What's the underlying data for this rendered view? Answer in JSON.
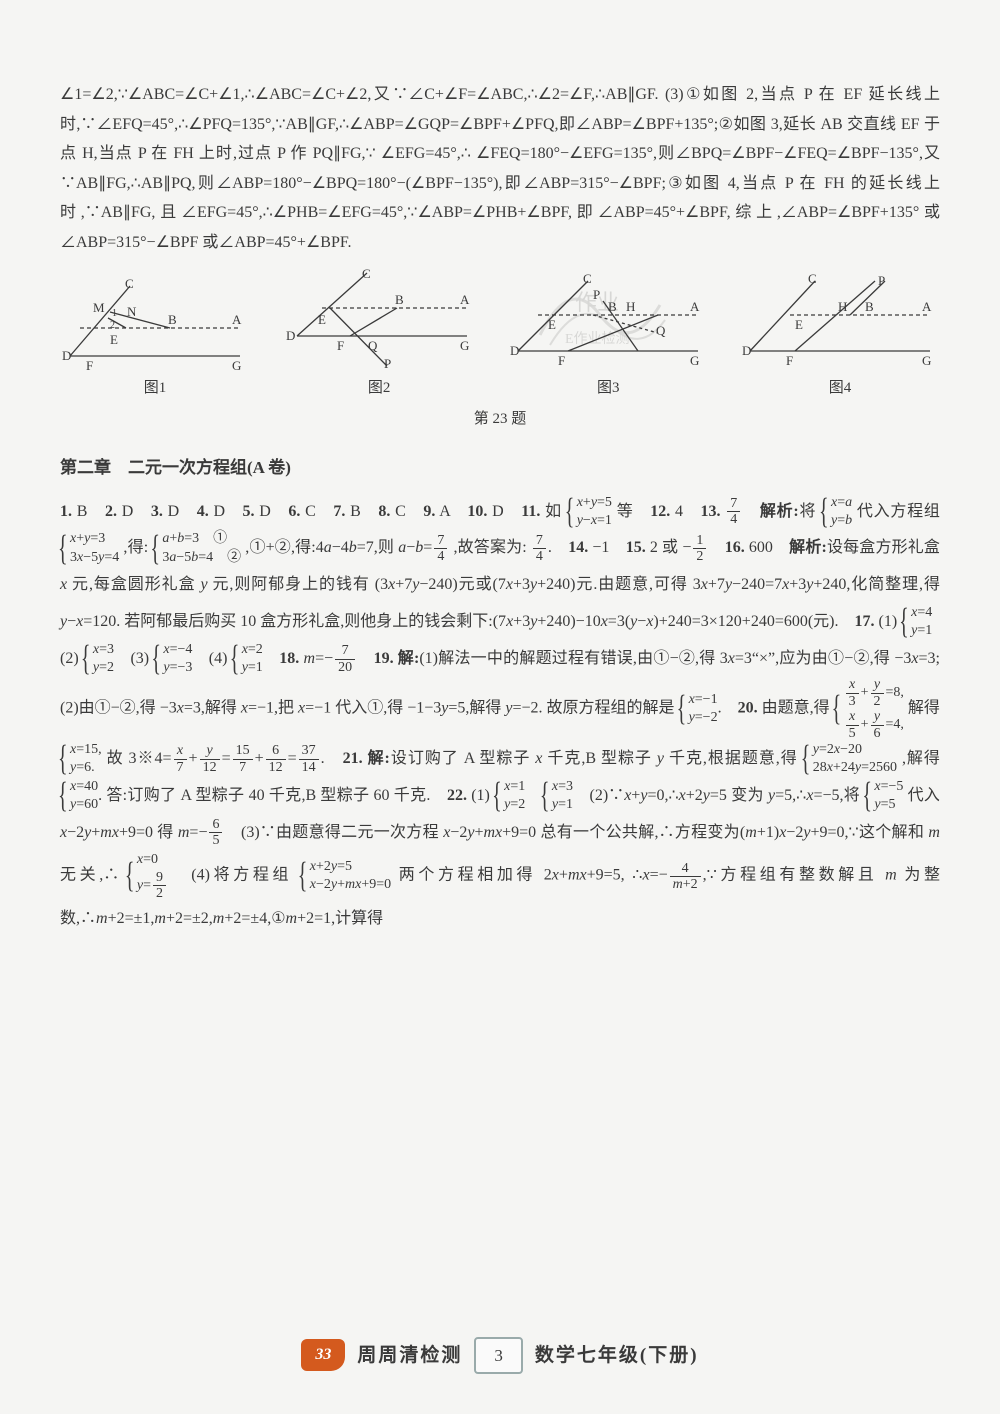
{
  "top_solution": "∠1=∠2,∵∠ABC=∠C+∠1,∴∠ABC=∠C+∠2,又∵∠C+∠F=∠ABC,∴∠2=∠F,∴AB∥GF. (3)①如图 2,当点 P 在 EF 延长线上时,∵∠EFQ=45°,∴∠PFQ=135°,∵AB∥GF,∴∠ABP=∠GQP=∠BPF+∠PFQ,即∠ABP=∠BPF+135°;②如图 3,延长 AB 交直线 EF 于点 H,当点 P 在 FH 上时,过点 P 作 PQ∥FG,∵ ∠EFG=45°,∴ ∠FEQ=180°−∠EFG=135°,则∠BPQ=∠BPF−∠FEQ=∠BPF−135°,又∵AB∥FG,∴AB∥PQ,则∠ABP=180°−∠BPQ=180°−(∠BPF−135°),即∠ABP=315°−∠BPF;③如图 4,当点 P 在 FH 的延长线上时,∵AB∥FG,且∠EFG=45°,∴∠PHB=∠EFG=45°,∵∠ABP=∠PHB+∠BPF,即∠ABP=45°+∠BPF,综上,∠ABP=∠BPF+135°或∠ABP=315°−∠BPF 或∠ABP=45°+∠BPF.",
  "figures": {
    "labels": [
      "图1",
      "图2",
      "图3",
      "图4"
    ],
    "caption": "第 23 题",
    "letters": {
      "f1": [
        "C",
        "M",
        "N",
        "A",
        "B",
        "D",
        "E",
        "F",
        "G"
      ],
      "f2": [
        "C",
        "A",
        "B",
        "D",
        "E",
        "F",
        "G",
        "P",
        "Q"
      ],
      "f3": [
        "C",
        "A",
        "B",
        "D",
        "E",
        "F",
        "G",
        "P",
        "H",
        "Q"
      ],
      "f4": [
        "C",
        "P",
        "A",
        "B",
        "D",
        "E",
        "F",
        "G",
        "H"
      ]
    }
  },
  "chapter_heading": "第二章　二元一次方程组(A 卷)",
  "answers_html": "<b>1.</b> B　<b>2.</b> D　<b>3.</b> D　<b>4.</b> D　<b>5.</b> D　<b>6.</b> C　<b>7.</b> B　<b>8.</b> C　<b>9.</b> A　<b>10.</b> D　<b>11.</b> 如 <span class='sys'><span class='row'><span class='it'>x</span>+<span class='it'>y</span>=5</span><span class='row'><span class='it'>y</span>−<span class='it'>x</span>=1</span></span> 等　<b>12.</b> 4　<b>13.</b> <span class='frac'><span class='num'>7</span><span class='den'>4</span></span>　<b>解析:</b>将 <span class='sys'><span class='row'><span class='it'>x</span>=<span class='it'>a</span></span><span class='row'><span class='it'>y</span>=<span class='it'>b</span></span></span> 代入方程组 <span class='sys'><span class='row'><span class='it'>x</span>+<span class='it'>y</span>=3</span><span class='row'>3<span class='it'>x</span>−5<span class='it'>y</span>=4</span></span> ,得: <span class='sys'><span class='row'><span class='it'>a</span>+<span class='it'>b</span>=3　①</span><span class='row'>3<span class='it'>a</span>−5<span class='it'>b</span>=4　②</span></span> ,①+②,得:4<span class='it'>a</span>−4<span class='it'>b</span>=7,则 <span class='it'>a</span>−<span class='it'>b</span>=<span class='frac'><span class='num'>7</span><span class='den'>4</span></span> ,故答案为: <span class='frac'><span class='num'>7</span><span class='den'>4</span></span>.　<b>14.</b> −1　<b>15.</b> 2 或 −<span class='frac'><span class='num'>1</span><span class='den'>2</span></span>　<b>16.</b> 600　<b>解析:</b>设每盒方形礼盒 <span class='it'>x</span> 元,每盒圆形礼盒 <span class='it'>y</span> 元,则阿郁身上的钱有 (3<span class='it'>x</span>+7<span class='it'>y</span>−240)元或(7<span class='it'>x</span>+3<span class='it'>y</span>+240)元.由题意,可得 3<span class='it'>x</span>+7<span class='it'>y</span>−240=7<span class='it'>x</span>+3<span class='it'>y</span>+240,化简整理,得 <span class='it'>y</span>−<span class='it'>x</span>=120. 若阿郁最后购买 10 盒方形礼盒,则他身上的钱会剩下:(7<span class='it'>x</span>+3<span class='it'>y</span>+240)−10<span class='it'>x</span>=3(<span class='it'>y</span>−<span class='it'>x</span>)+240=3×120+240=600(元).　<b>17.</b> (1) <span class='sys'><span class='row'><span class='it'>x</span>=4</span><span class='row'><span class='it'>y</span>=1</span></span>　(2) <span class='sys'><span class='row'><span class='it'>x</span>=3</span><span class='row'><span class='it'>y</span>=2</span></span>　(3) <span class='sys'><span class='row'><span class='it'>x</span>=−4</span><span class='row'><span class='it'>y</span>=−3</span></span>　(4) <span class='sys'><span class='row'><span class='it'>x</span>=2</span><span class='row'><span class='it'>y</span>=1</span></span>　<b>18.</b> <span class='it'>m</span>=−<span class='frac'><span class='num'>7</span><span class='den'>20</span></span>　<b>19. 解:</b>(1)解法一中的解题过程有错误,由①−②,得 3<span class='it'>x</span>=3“×”,应为由①−②,得 −3<span class='it'>x</span>=3;　(2)由①−②,得 −3<span class='it'>x</span>=3,解得 <span class='it'>x</span>=−1,把 <span class='it'>x</span>=−1 代入①,得 −1−3<span class='it'>y</span>=5,解得 <span class='it'>y</span>=−2. 故原方程组的解是 <span class='sys'><span class='row'><span class='it'>x</span>=−1</span><span class='row'><span class='it'>y</span>=−2</span></span>.　<b>20.</b> 由题意,得 <span class='sys'><span class='row'><span class='frac'><span class='num'><span class='it'>x</span></span><span class='den'>3</span></span>+<span class='frac'><span class='num'><span class='it'>y</span></span><span class='den'>2</span></span>=8,</span><span class='row'><span class='frac'><span class='num'><span class='it'>x</span></span><span class='den'>5</span></span>+<span class='frac'><span class='num'><span class='it'>y</span></span><span class='den'>6</span></span>=4,</span></span> 解得 <span class='sys'><span class='row'><span class='it'>x</span>=15,</span><span class='row'><span class='it'>y</span>=6.</span></span> 故 3※4=<span class='frac'><span class='num'><span class='it'>x</span></span><span class='den'>7</span></span>+<span class='frac'><span class='num'><span class='it'>y</span></span><span class='den'>12</span></span>=<span class='frac'><span class='num'>15</span><span class='den'>7</span></span>+<span class='frac'><span class='num'>6</span><span class='den'>12</span></span>=<span class='frac'><span class='num'>37</span><span class='den'>14</span></span>.　<b>21. 解:</b>设订购了 A 型粽子 <span class='it'>x</span> 千克,B 型粽子 <span class='it'>y</span> 千克,根据题意,得 <span class='sys'><span class='row'><span class='it'>y</span>=2<span class='it'>x</span>−20</span><span class='row'>28<span class='it'>x</span>+24<span class='it'>y</span>=2560</span></span> ,解得 <span class='sys'><span class='row'><span class='it'>x</span>=40</span><span class='row'><span class='it'>y</span>=60</span></span>. 答:订购了 A 型粽子 40 千克,B 型粽子 60 千克.　<b>22.</b> (1) <span class='sys'><span class='row'><span class='it'>x</span>=1</span><span class='row'><span class='it'>y</span>=2</span></span>　<span class='sys'><span class='row'><span class='it'>x</span>=3</span><span class='row'><span class='it'>y</span>=1</span></span>　(2)∵<span class='it'>x</span>+<span class='it'>y</span>=0,∴<span class='it'>x</span>+2<span class='it'>y</span>=5 变为 <span class='it'>y</span>=5,∴<span class='it'>x</span>=−5,将 <span class='sys'><span class='row'><span class='it'>x</span>=−5</span><span class='row'><span class='it'>y</span>=5</span></span> 代入 <span class='it'>x</span>−2<span class='it'>y</span>+<span class='it'>mx</span>+9=0 得 <span class='it'>m</span>=−<span class='frac'><span class='num'>6</span><span class='den'>5</span></span>　(3)∵由题意得二元一次方程 <span class='it'>x</span>−2<span class='it'>y</span>+<span class='it'>mx</span>+9=0 总有一个公共解,∴方程变为(<span class='it'>m</span>+1)<span class='it'>x</span>−2<span class='it'>y</span>+9=0,∵这个解和 <span class='it'>m</span> 无关,∴ <span class='sys'><span class='row'><span class='it'>x</span>=0</span><span class='row'><span class='it'>y</span>=<span class='frac'><span class='num'>9</span><span class='den'>2</span></span></span></span>　(4)将方程组 <span class='sys'><span class='row'><span class='it'>x</span>+2<span class='it'>y</span>=5</span><span class='row'><span class='it'>x</span>−2<span class='it'>y</span>+<span class='it'>mx</span>+9=0</span></span> 两个方程相加得 2<span class='it'>x</span>+<span class='it'>mx</span>+9=5, ∴<span class='it'>x</span>=−<span class='frac'><span class='num'>4</span><span class='den'><span class='it'>m</span>+2</span></span>,∵方程组有整数解且 <span class='it'>m</span> 为整数,∴<span class='it'>m</span>+2=±1,<span class='it'>m</span>+2=±2,<span class='it'>m</span>+2=±4,①<span class='it'>m</span>+2=1,计算得",
  "footer": {
    "logo_text": "33",
    "title": "周周清检测",
    "page": "3",
    "subject": "数学七年级(下册)"
  },
  "colors": {
    "text": "#3a3a3a",
    "page_bg": "#f5f5f3",
    "outer_bg": "#e8e8e8",
    "logo_bg": "#d45a1e",
    "box_border": "#99aaaa"
  }
}
